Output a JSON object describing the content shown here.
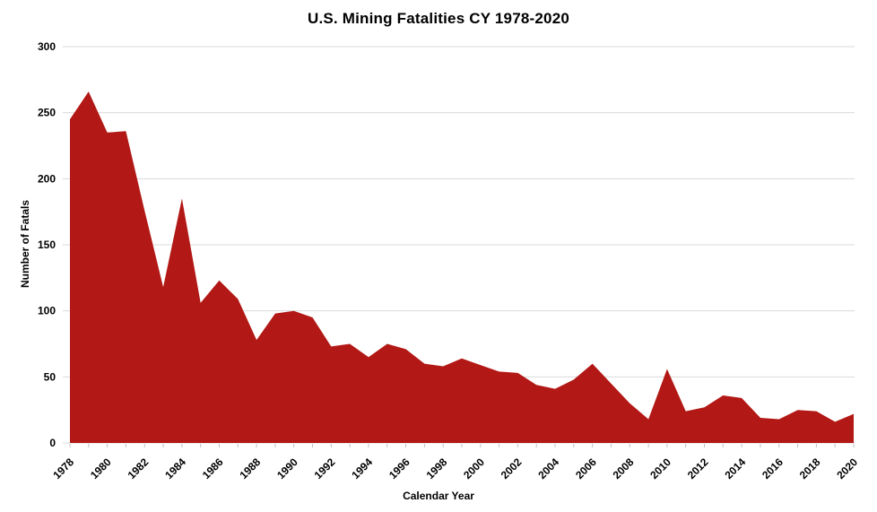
{
  "chart_data": {
    "type": "area",
    "title": "U.S. Mining Fatalities CY 1978-2020",
    "xlabel": "Calendar Year",
    "ylabel": "Number of Fatals",
    "x": [
      1978,
      1979,
      1980,
      1981,
      1982,
      1983,
      1984,
      1985,
      1986,
      1987,
      1988,
      1989,
      1990,
      1991,
      1992,
      1993,
      1994,
      1995,
      1996,
      1997,
      1998,
      1999,
      2000,
      2001,
      2002,
      2003,
      2004,
      2005,
      2006,
      2007,
      2008,
      2009,
      2010,
      2011,
      2012,
      2013,
      2014,
      2015,
      2016,
      2017,
      2018,
      2019,
      2020
    ],
    "values": [
      245,
      266,
      235,
      236,
      176,
      118,
      185,
      106,
      123,
      109,
      78,
      98,
      100,
      95,
      73,
      75,
      65,
      75,
      71,
      60,
      58,
      64,
      59,
      54,
      53,
      44,
      41,
      48,
      60,
      45,
      30,
      18,
      56,
      24,
      27,
      36,
      34,
      19,
      18,
      25,
      24,
      16,
      22
    ],
    "ylim": [
      0,
      300
    ],
    "ytick_step": 50,
    "xtick_label_step": 2,
    "grid": true,
    "legend": false,
    "area_color": "#b21815",
    "grid_color": "#d9d9d9",
    "tick_color": "#bfbfbf",
    "text_color": "#000000",
    "background": "#ffffff"
  }
}
